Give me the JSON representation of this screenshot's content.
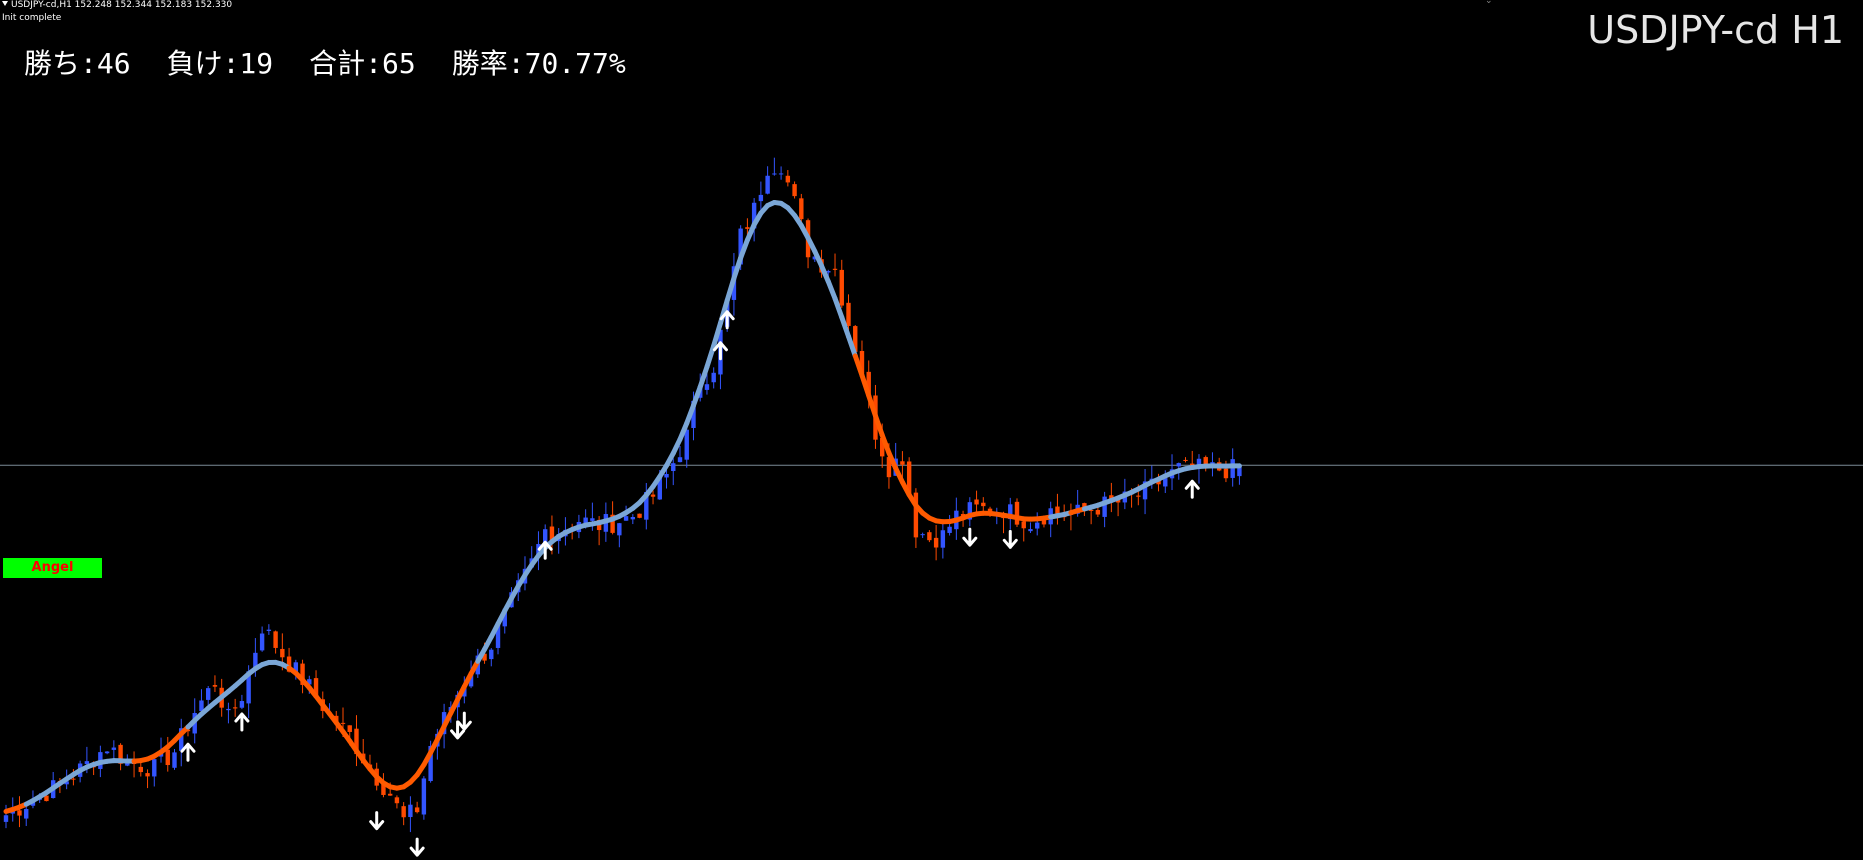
{
  "window": {
    "info_line": "USDJPY-cd,H1  152.248 152.344 152.183 152.330",
    "status": "Init complete",
    "symbol_label": "USDJPY-cd H1"
  },
  "stats": {
    "wins": "勝ち:46",
    "losses": "負け:19",
    "total": "合計:65",
    "win_rate": "勝率:70.77%"
  },
  "angel_button": {
    "label": "Angel"
  },
  "colors": {
    "background": "#000000",
    "bull_candle": "#3355ff",
    "bear_candle": "#ff4a00",
    "line_up": "#7aa6d6",
    "line_down": "#ff5a00",
    "arrow": "#ffffff",
    "price_line": "#7a8a96",
    "button_bg": "#00ff00",
    "button_text": "#ff0000"
  },
  "chart_data": {
    "type": "candlestick",
    "symbol": "USDJPY-cd",
    "timeframe": "H1",
    "current_bar": {
      "open": 152.248,
      "high": 152.344,
      "low": 152.183,
      "close": 152.33
    },
    "bar_count": 184,
    "price_path_close": [
      [
        0,
        149.7
      ],
      [
        8,
        149.93
      ],
      [
        12,
        150.08
      ],
      [
        15,
        150.22
      ],
      [
        18,
        150.1
      ],
      [
        22,
        150.05
      ],
      [
        25,
        150.18
      ],
      [
        28,
        150.48
      ],
      [
        31,
        150.7
      ],
      [
        33,
        150.42
      ],
      [
        35,
        150.6
      ],
      [
        38,
        151.12
      ],
      [
        41,
        150.91
      ],
      [
        43,
        150.78
      ],
      [
        46,
        150.6
      ],
      [
        48,
        150.45
      ],
      [
        51,
        150.3
      ],
      [
        54,
        150.05
      ],
      [
        57,
        149.86
      ],
      [
        59,
        149.66
      ],
      [
        61,
        149.75
      ],
      [
        63,
        150.22
      ],
      [
        66,
        150.52
      ],
      [
        69,
        150.8
      ],
      [
        72,
        150.98
      ],
      [
        75,
        151.3
      ],
      [
        78,
        151.59
      ],
      [
        80,
        151.84
      ],
      [
        82,
        151.84
      ],
      [
        85,
        151.92
      ],
      [
        88,
        151.88
      ],
      [
        90,
        151.9
      ],
      [
        93,
        151.95
      ],
      [
        96,
        152.1
      ],
      [
        98,
        152.25
      ],
      [
        101,
        152.55
      ],
      [
        103,
        152.95
      ],
      [
        105,
        153.08
      ],
      [
        107,
        153.55
      ],
      [
        109,
        154.05
      ],
      [
        111,
        154.25
      ],
      [
        113,
        154.58
      ],
      [
        115,
        154.6
      ],
      [
        117,
        154.3
      ],
      [
        119,
        153.95
      ],
      [
        121,
        153.85
      ],
      [
        123,
        153.8
      ],
      [
        125,
        153.4
      ],
      [
        127,
        153.05
      ],
      [
        129,
        152.58
      ],
      [
        131,
        152.32
      ],
      [
        133,
        152.4
      ],
      [
        135,
        151.85
      ],
      [
        137,
        151.78
      ],
      [
        139,
        151.8
      ],
      [
        141,
        151.95
      ],
      [
        144,
        152.0
      ],
      [
        148,
        152.0
      ],
      [
        152,
        151.9
      ],
      [
        155,
        151.99
      ],
      [
        158,
        151.95
      ],
      [
        162,
        152.02
      ],
      [
        165,
        152.05
      ],
      [
        168,
        152.1
      ],
      [
        171,
        152.2
      ],
      [
        174,
        152.3
      ]
    ],
    "indicator_turns": [
      {
        "bar": 0,
        "trend": "down"
      },
      {
        "bar": 3,
        "trend": "up"
      },
      {
        "bar": 19,
        "trend": "down"
      },
      {
        "bar": 27,
        "trend": "up"
      },
      {
        "bar": 42,
        "trend": "down"
      },
      {
        "bar": 70,
        "trend": "up"
      },
      {
        "bar": 126,
        "trend": "down"
      },
      {
        "bar": 155,
        "trend": "up"
      },
      {
        "bar": 158,
        "trend": "down"
      },
      {
        "bar": 160,
        "trend": "up"
      }
    ],
    "signals": [
      {
        "bar": 27,
        "type": "buy"
      },
      {
        "bar": 35,
        "type": "buy"
      },
      {
        "bar": 55,
        "type": "sell"
      },
      {
        "bar": 61,
        "type": "sell"
      },
      {
        "bar": 67,
        "type": "sell"
      },
      {
        "bar": 68,
        "type": "sell"
      },
      {
        "bar": 80,
        "type": "buy"
      },
      {
        "bar": 106,
        "type": "buy"
      },
      {
        "bar": 107,
        "type": "buy"
      },
      {
        "bar": 143,
        "type": "sell"
      },
      {
        "bar": 149,
        "type": "sell"
      },
      {
        "bar": 176,
        "type": "buy"
      }
    ],
    "price_line": 152.33,
    "ylim": [
      149.55,
      154.85
    ],
    "xlabel": "",
    "ylabel": "",
    "grid": false
  }
}
